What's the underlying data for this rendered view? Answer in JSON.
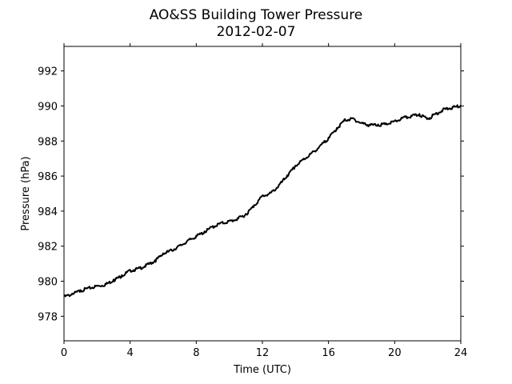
{
  "chart_data": {
    "type": "line",
    "title": "AO&SS Building Tower Pressure",
    "subtitle": "2012-02-07",
    "xlabel": "Time (UTC)",
    "ylabel": "Pressure (hPa)",
    "xlim": [
      0,
      24
    ],
    "ylim": [
      976.6,
      993.4
    ],
    "xticks": [
      0,
      4,
      8,
      12,
      16,
      20,
      24
    ],
    "yticks": [
      978,
      980,
      982,
      984,
      986,
      988,
      990,
      992
    ],
    "grid": false,
    "legend": "none",
    "series": [
      {
        "color": "#000000",
        "x": [
          0,
          0.5,
          1,
          1.5,
          2,
          2.5,
          3,
          3.5,
          4,
          4.5,
          5,
          5.5,
          6,
          6.5,
          7,
          7.5,
          8,
          8.5,
          9,
          9.5,
          10,
          10.5,
          11,
          11.5,
          12,
          12.5,
          13,
          13.5,
          14,
          14.5,
          15,
          15.5,
          16,
          16.5,
          17,
          17.5,
          18,
          18.5,
          19,
          19.5,
          20,
          20.5,
          21,
          21.5,
          22,
          22.5,
          23,
          23.5,
          24
        ],
        "y": [
          979.15,
          979.3,
          979.5,
          979.65,
          979.75,
          979.85,
          980.1,
          980.35,
          980.65,
          980.75,
          980.95,
          981.2,
          981.6,
          981.8,
          982.05,
          982.35,
          982.6,
          982.85,
          983.15,
          983.35,
          983.45,
          983.6,
          983.85,
          984.35,
          984.9,
          985.05,
          985.5,
          986.05,
          986.6,
          987.0,
          987.35,
          987.75,
          988.2,
          988.75,
          989.25,
          989.3,
          989.05,
          988.95,
          988.95,
          989.0,
          989.15,
          989.35,
          989.45,
          989.55,
          989.3,
          989.6,
          989.85,
          989.95,
          990.05
        ]
      }
    ]
  }
}
